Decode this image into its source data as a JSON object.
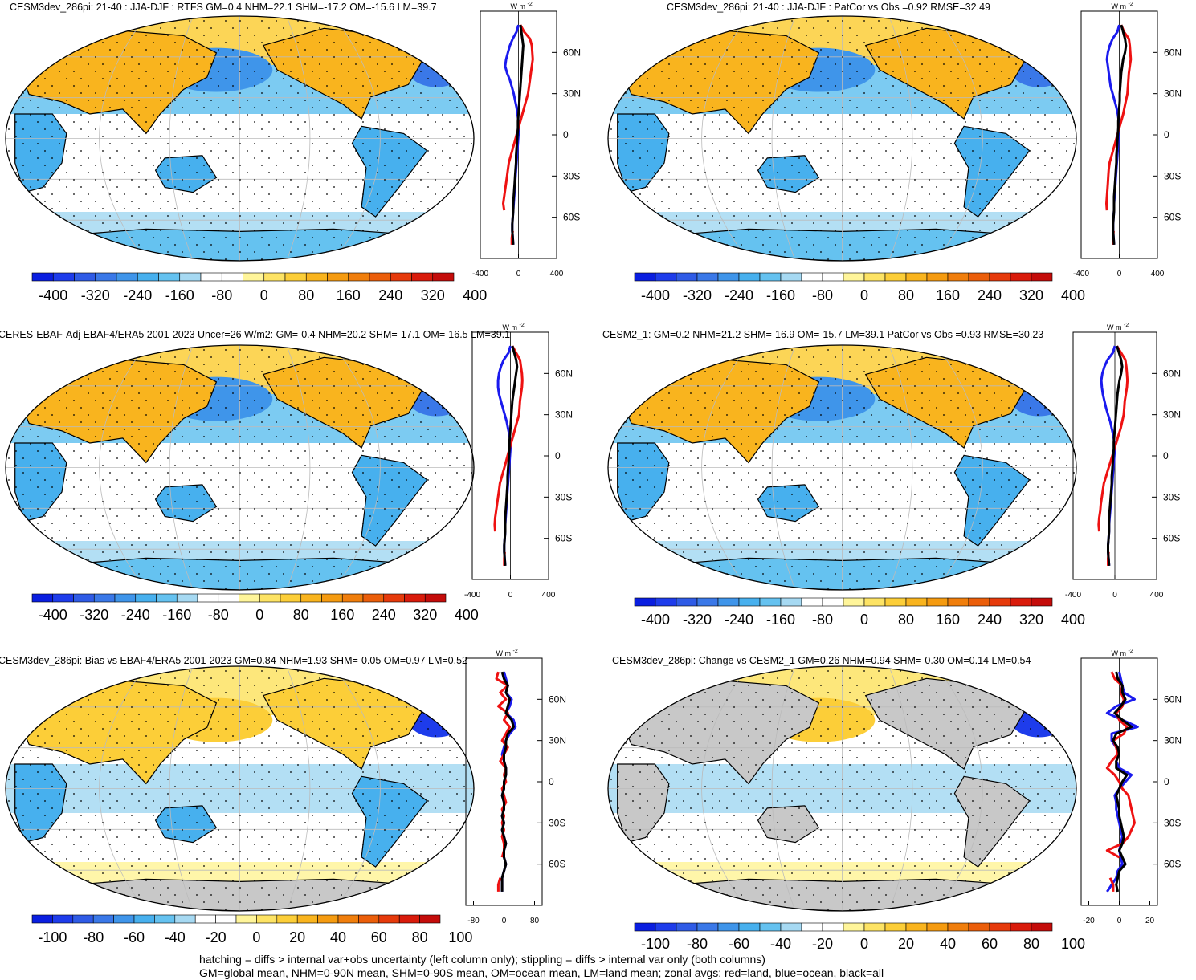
{
  "figure": {
    "footer_lines": [
      "hatching = diffs > internal var+obs uncertainty (left column only); stippling = diffs > internal var only (both columns)",
      "GM=global mean, NHM=0-90N mean, SHM=0-90S mean, OM=ocean mean, LM=land mean; zonal avgs: red=land, blue=ocean, black=all"
    ],
    "zonal_units": "W m",
    "zonal_units_sup": "-2",
    "colors": {
      "land_line": "#ee1111",
      "ocean_line": "#1a1aee",
      "all_line": "#000000",
      "missing": "#c8c8c8",
      "graticule": "#bbbbbb"
    }
  },
  "chart_data": [
    {
      "type": "heatmap",
      "title": "CESM3dev_286pi: 21-40 : JJA-DJF : RTFS GM=0.4 NHM=22.1 SHM=-17.2 OM=-15.6 LM=39.7",
      "colorbar": {
        "labels": [
          "-400",
          "-320",
          "-240",
          "-160",
          "-80",
          "0",
          "80",
          "160",
          "240",
          "320",
          "400"
        ],
        "range": [
          -400,
          400
        ]
      },
      "zonal_profile": {
        "xlim": [
          -400,
          400
        ],
        "xticks": [
          "-400",
          "0",
          "400"
        ],
        "yticks": [
          "60N",
          "30N",
          "0",
          "30S",
          "60S"
        ],
        "ylim": [
          -90,
          90
        ],
        "lat": [
          80,
          75,
          70,
          65,
          60,
          55,
          50,
          45,
          40,
          35,
          30,
          25,
          20,
          15,
          10,
          5,
          0,
          -5,
          -10,
          -15,
          -20,
          -25,
          -30,
          -35,
          -40,
          -45,
          -50,
          -55,
          -60,
          -65,
          -70,
          -75,
          -80
        ],
        "land": [
          20,
          60,
          120,
          140,
          145,
          150,
          140,
          130,
          120,
          110,
          100,
          80,
          60,
          40,
          20,
          0,
          -20,
          -40,
          -60,
          -80,
          -100,
          -110,
          -120,
          -130,
          -140,
          -150,
          -160,
          -150,
          null,
          null,
          -60,
          -70,
          -70
        ],
        "ocean": [
          0,
          -20,
          -60,
          -90,
          -110,
          -130,
          -140,
          -120,
          -90,
          -70,
          -50,
          -35,
          -20,
          -10,
          0,
          5,
          0,
          -5,
          -10,
          -15,
          -20,
          -25,
          -30,
          -35,
          -40,
          -45,
          -50,
          -55,
          -60,
          -65,
          -65,
          -60,
          -55
        ],
        "all": [
          20,
          30,
          40,
          50,
          45,
          40,
          35,
          30,
          25,
          20,
          15,
          10,
          5,
          0,
          -5,
          -5,
          -10,
          -15,
          -20,
          -25,
          -25,
          -30,
          -35,
          -40,
          -45,
          -50,
          -55,
          -55,
          -60,
          -65,
          -65,
          -60,
          -55
        ]
      }
    },
    {
      "type": "heatmap",
      "title": "CESM3dev_286pi: 21-40 : JJA-DJF : PatCor vs Obs =0.92 RMSE=32.49",
      "colorbar": {
        "labels": [
          "-400",
          "-320",
          "-240",
          "-160",
          "-80",
          "0",
          "80",
          "160",
          "240",
          "320",
          "400"
        ],
        "range": [
          -400,
          400
        ]
      },
      "zonal_profile": {
        "xlim": [
          -400,
          400
        ],
        "xticks": [
          "-400",
          "0",
          "400"
        ],
        "yticks": [
          "60N",
          "30N",
          "0",
          "30S",
          "60S"
        ],
        "ylim": [
          -90,
          90
        ],
        "lat": [
          80,
          75,
          70,
          65,
          60,
          55,
          50,
          45,
          40,
          35,
          30,
          25,
          20,
          15,
          10,
          5,
          0,
          -5,
          -10,
          -15,
          -20,
          -25,
          -30,
          -35,
          -40,
          -45,
          -50,
          -55,
          -60,
          -65,
          -70,
          -75,
          -80
        ],
        "land": [
          20,
          50,
          100,
          110,
          115,
          120,
          110,
          100,
          95,
          90,
          85,
          70,
          55,
          40,
          20,
          0,
          -20,
          -40,
          -60,
          -80,
          -100,
          -110,
          -115,
          -120,
          -125,
          -130,
          -135,
          -130,
          null,
          null,
          -60,
          -65,
          -65
        ],
        "ocean": [
          0,
          -20,
          -70,
          -100,
          -120,
          -130,
          -120,
          -110,
          -100,
          -90,
          -70,
          -50,
          -30,
          -15,
          -5,
          0,
          -5,
          -10,
          -15,
          -20,
          -25,
          -30,
          -35,
          -40,
          -45,
          -50,
          -55,
          -55,
          -60,
          -65,
          -65,
          -60,
          -55
        ],
        "all": [
          20,
          40,
          60,
          70,
          60,
          40,
          30,
          20,
          15,
          10,
          5,
          5,
          0,
          -5,
          -10,
          -10,
          -15,
          -20,
          -25,
          -30,
          -30,
          -35,
          -40,
          -45,
          -50,
          -55,
          -55,
          -55,
          -60,
          -65,
          -65,
          -60,
          -55
        ]
      }
    },
    {
      "type": "heatmap",
      "title": "CERES-EBAF-Adj EBAF4/ERA5 2001-2023 Uncer=26 W/m2: GM=-0.4 NHM=20.2 SHM=-17.1 OM=-16.5 LM=39.1",
      "colorbar": {
        "labels": [
          "-400",
          "-320",
          "-240",
          "-160",
          "-80",
          "0",
          "80",
          "160",
          "240",
          "320",
          "400"
        ],
        "range": [
          -400,
          400
        ]
      },
      "zonal_profile": {
        "xlim": [
          -400,
          400
        ],
        "xticks": [
          "-400",
          "0",
          "400"
        ],
        "yticks": [
          "60N",
          "30N",
          "0",
          "30S",
          "60S"
        ],
        "ylim": [
          -90,
          90
        ],
        "lat": [
          80,
          75,
          70,
          65,
          60,
          55,
          50,
          45,
          40,
          35,
          30,
          25,
          20,
          15,
          10,
          5,
          0,
          -5,
          -10,
          -15,
          -20,
          -25,
          -30,
          -35,
          -40,
          -45,
          -50,
          -55,
          -60,
          -65,
          -70,
          -75,
          -80
        ],
        "land": [
          20,
          60,
          100,
          110,
          120,
          125,
          120,
          110,
          100,
          95,
          90,
          70,
          50,
          30,
          10,
          -10,
          -30,
          -50,
          -70,
          -90,
          -110,
          -120,
          -130,
          -140,
          -150,
          -160,
          -165,
          -160,
          null,
          null,
          -60,
          -65,
          -65
        ],
        "ocean": [
          0,
          -20,
          -70,
          -100,
          -120,
          -130,
          -130,
          -120,
          -100,
          -80,
          -60,
          -40,
          -25,
          -10,
          0,
          0,
          -5,
          -10,
          -15,
          -20,
          -25,
          -30,
          -35,
          -40,
          -45,
          -50,
          -55,
          -55,
          -60,
          -65,
          -65,
          -60,
          -55
        ],
        "all": [
          20,
          40,
          60,
          70,
          60,
          50,
          40,
          30,
          20,
          15,
          10,
          5,
          0,
          -5,
          -10,
          -10,
          -15,
          -20,
          -25,
          -30,
          -30,
          -35,
          -40,
          -45,
          -50,
          -55,
          -55,
          -55,
          -60,
          -65,
          -65,
          -60,
          -55
        ]
      }
    },
    {
      "type": "heatmap",
      "title": "CESM2_1: GM=0.2 NHM=21.2 SHM=-16.9 OM=-15.7 LM=39.1 PatCor vs Obs =0.93 RMSE=30.23",
      "colorbar": {
        "labels": [
          "-400",
          "-320",
          "-240",
          "-160",
          "-80",
          "0",
          "80",
          "160",
          "240",
          "320",
          "400"
        ],
        "range": [
          -400,
          400
        ]
      },
      "zonal_profile": {
        "xlim": [
          -400,
          400
        ],
        "xticks": [
          "-400",
          "0",
          "400"
        ],
        "yticks": [
          "60N",
          "30N",
          "0",
          "30S",
          "60S"
        ],
        "ylim": [
          -90,
          90
        ],
        "lat": [
          80,
          75,
          70,
          65,
          60,
          55,
          50,
          45,
          40,
          35,
          30,
          25,
          20,
          15,
          10,
          5,
          0,
          -5,
          -10,
          -15,
          -20,
          -25,
          -30,
          -35,
          -40,
          -45,
          -50,
          -55,
          -60,
          -65,
          -70,
          -75,
          -80
        ],
        "land": [
          20,
          60,
          100,
          110,
          115,
          120,
          115,
          105,
          95,
          90,
          85,
          70,
          55,
          35,
          15,
          -5,
          -25,
          -45,
          -65,
          -85,
          -105,
          -115,
          -125,
          -135,
          -140,
          -150,
          -155,
          -150,
          null,
          null,
          -60,
          -65,
          -65
        ],
        "ocean": [
          0,
          -20,
          -70,
          -100,
          -120,
          -130,
          -125,
          -115,
          -100,
          -85,
          -65,
          -45,
          -30,
          -15,
          -5,
          0,
          -5,
          -10,
          -15,
          -20,
          -25,
          -30,
          -35,
          -40,
          -45,
          -50,
          -55,
          -55,
          -60,
          -65,
          -65,
          -60,
          -55
        ],
        "all": [
          20,
          40,
          60,
          70,
          60,
          45,
          35,
          25,
          20,
          15,
          10,
          5,
          0,
          -5,
          -10,
          -10,
          -15,
          -20,
          -25,
          -30,
          -30,
          -35,
          -40,
          -45,
          -50,
          -55,
          -55,
          -55,
          -60,
          -65,
          -65,
          -60,
          -55
        ]
      }
    },
    {
      "type": "heatmap",
      "title": "CESM3dev_286pi: Bias vs EBAF4/ERA5 2001-2023 GM=0.84 NHM=1.93 SHM=-0.05 OM=0.97 LM=0.52",
      "colorbar": {
        "labels": [
          "-100",
          "-80",
          "-60",
          "-40",
          "-20",
          "0",
          "20",
          "40",
          "60",
          "80",
          "100"
        ],
        "range": [
          -100,
          100
        ]
      },
      "zonal_profile": {
        "xlim": [
          -100,
          100
        ],
        "xticks": [
          "-80",
          "0",
          "80"
        ],
        "yticks": [
          "60N",
          "30N",
          "0",
          "30S",
          "60S"
        ],
        "ylim": [
          -90,
          90
        ],
        "lat": [
          80,
          75,
          70,
          65,
          60,
          55,
          50,
          45,
          40,
          35,
          30,
          25,
          20,
          15,
          10,
          5,
          0,
          -5,
          -10,
          -15,
          -20,
          -25,
          -30,
          -35,
          -40,
          -45,
          -50,
          -55,
          -60,
          -65,
          -70,
          -75,
          -80
        ],
        "land": [
          -15,
          -20,
          10,
          -10,
          5,
          -15,
          10,
          0,
          15,
          5,
          -5,
          10,
          0,
          -10,
          5,
          0,
          5,
          -5,
          0,
          5,
          -5,
          0,
          -5,
          0,
          -5,
          0,
          0,
          -5,
          null,
          null,
          -10,
          -15,
          -15
        ],
        "ocean": [
          0,
          5,
          10,
          5,
          20,
          15,
          5,
          25,
          30,
          15,
          5,
          0,
          -5,
          0,
          5,
          5,
          0,
          0,
          -5,
          0,
          0,
          -5,
          0,
          -5,
          0,
          5,
          0,
          0,
          5,
          0,
          -5,
          -5,
          -5
        ],
        "all": [
          -5,
          0,
          10,
          5,
          15,
          10,
          5,
          20,
          25,
          10,
          5,
          5,
          0,
          0,
          5,
          5,
          0,
          0,
          -5,
          0,
          0,
          -5,
          0,
          -5,
          0,
          5,
          0,
          0,
          5,
          0,
          -5,
          -5,
          -5
        ]
      }
    },
    {
      "type": "heatmap",
      "title": "CESM3dev_286pi: Change vs CESM2_1 GM=0.26 NHM=0.94 SHM=-0.30 OM=0.14 LM=0.54",
      "colorbar": {
        "labels": [
          "-100",
          "-80",
          "-60",
          "-40",
          "-20",
          "0",
          "20",
          "40",
          "60",
          "80",
          "100"
        ],
        "range": [
          -100,
          100
        ]
      },
      "zonal_profile": {
        "xlim": [
          -25,
          25
        ],
        "xticks": [
          "-20",
          "0",
          "20"
        ],
        "yticks": [
          "60N",
          "30N",
          "0",
          "30S",
          "60S"
        ],
        "ylim": [
          -90,
          90
        ],
        "lat": [
          80,
          75,
          70,
          65,
          60,
          55,
          50,
          45,
          40,
          35,
          30,
          25,
          20,
          15,
          10,
          5,
          0,
          -5,
          -10,
          -15,
          -20,
          -25,
          -30,
          -35,
          -40,
          -45,
          -50,
          -55,
          -60,
          -65,
          -70,
          -75,
          -80
        ],
        "land": [
          -5,
          -3,
          2,
          1,
          3,
          2,
          -2,
          0,
          5,
          3,
          -4,
          -2,
          -1,
          -5,
          -8,
          -3,
          0,
          2,
          6,
          7,
          8,
          9,
          10,
          8,
          6,
          2,
          -8,
          0,
          null,
          null,
          -6,
          -4,
          -4
        ],
        "ocean": [
          0,
          1,
          2,
          3,
          10,
          -2,
          -8,
          2,
          12,
          -5,
          -5,
          -2,
          0,
          -2,
          0,
          8,
          4,
          0,
          -3,
          -2,
          -2,
          -1,
          0,
          1,
          2,
          1,
          0,
          1,
          2,
          -1,
          -2,
          -5,
          -8
        ],
        "all": [
          -2,
          -1,
          2,
          2,
          4,
          1,
          -3,
          2,
          8,
          -2,
          -4,
          -1,
          0,
          -2,
          -2,
          5,
          2,
          0,
          -2,
          -1,
          0,
          0,
          1,
          2,
          3,
          2,
          0,
          2,
          4,
          0,
          -1,
          -2,
          -1
        ]
      }
    }
  ]
}
